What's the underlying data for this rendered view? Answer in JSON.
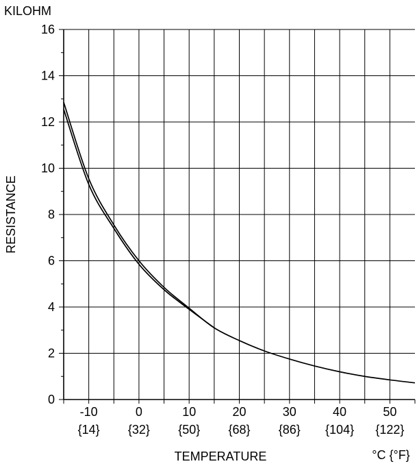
{
  "chart_data": {
    "type": "line",
    "unit_label": "KILOHM",
    "ylabel": "RESISTANCE",
    "xlabel": "TEMPERATURE",
    "x_unit_label": "°C {°F}",
    "xlim": [
      -15,
      55
    ],
    "ylim": [
      0,
      16
    ],
    "x_ticks": [
      {
        "c": -10,
        "label": "-10",
        "f_label": "{14}"
      },
      {
        "c": 0,
        "label": "0",
        "f_label": "{32}"
      },
      {
        "c": 10,
        "label": "10",
        "f_label": "{50}"
      },
      {
        "c": 20,
        "label": "20",
        "f_label": "{68}"
      },
      {
        "c": 30,
        "label": "30",
        "f_label": "{86}"
      },
      {
        "c": 40,
        "label": "40",
        "f_label": "{104}"
      },
      {
        "c": 50,
        "label": "50",
        "f_label": "{122}"
      }
    ],
    "y_ticks": [
      {
        "v": 0,
        "label": "0"
      },
      {
        "v": 2,
        "label": "2"
      },
      {
        "v": 4,
        "label": "4"
      },
      {
        "v": 6,
        "label": "6"
      },
      {
        "v": 8,
        "label": "8"
      },
      {
        "v": 10,
        "label": "10"
      },
      {
        "v": 12,
        "label": "12"
      },
      {
        "v": 14,
        "label": "14"
      },
      {
        "v": 16,
        "label": "16"
      }
    ],
    "x_minor_step": 5,
    "y_minor_step": 1,
    "grid": true,
    "series": [
      {
        "x": [
          -15,
          -10,
          -5,
          0,
          5,
          10,
          15,
          20,
          25,
          30,
          35,
          40,
          45,
          50,
          55
        ],
        "y": [
          12.85,
          9.55,
          7.55,
          6.0,
          4.85,
          3.95,
          3.1,
          2.55,
          2.1,
          1.75,
          1.45,
          1.2,
          1.0,
          0.85,
          0.72
        ]
      },
      {
        "x": [
          -15,
          -10,
          -5,
          0,
          5,
          10,
          15
        ],
        "y": [
          12.55,
          9.3,
          7.4,
          5.85,
          4.75,
          3.9,
          3.1
        ]
      }
    ]
  }
}
